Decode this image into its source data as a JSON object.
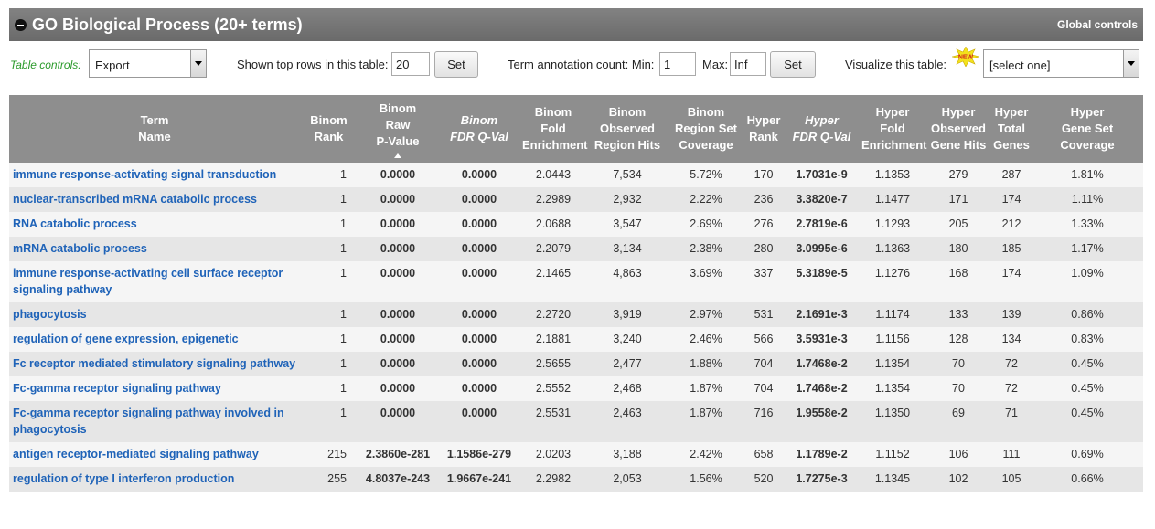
{
  "header": {
    "title": "GO Biological Process (20+ terms)",
    "global_controls": "Global controls"
  },
  "controls": {
    "table_controls_label": "Table controls:",
    "export_value": "Export",
    "shown_rows_label": "Shown top rows in this table:",
    "shown_rows_value": "20",
    "set_label": "Set",
    "annotation_label": "Term annotation count: Min:",
    "min_value": "1",
    "max_label": "Max:",
    "max_value": "Inf",
    "visualize_label": "Visualize this table:",
    "visualize_value": "[select one]",
    "new_badge": "NEW"
  },
  "columns": [
    {
      "l1": "Term",
      "l2": "Name",
      "l3": ""
    },
    {
      "l1": "Binom",
      "l2": "Rank",
      "l3": ""
    },
    {
      "l1": "Binom",
      "l2": "Raw",
      "l3": "P-Value"
    },
    {
      "l1": "Binom",
      "l2": "FDR Q-Val",
      "l3": ""
    },
    {
      "l1": "Binom",
      "l2": "Fold",
      "l3": "Enrichment"
    },
    {
      "l1": "Binom",
      "l2": "Observed",
      "l3": "Region Hits"
    },
    {
      "l1": "Binom",
      "l2": "Region Set",
      "l3": "Coverage"
    },
    {
      "l1": "Hyper",
      "l2": "Rank",
      "l3": ""
    },
    {
      "l1": "Hyper",
      "l2": "FDR Q-Val",
      "l3": ""
    },
    {
      "l1": "Hyper",
      "l2": "Fold",
      "l3": "Enrichment"
    },
    {
      "l1": "Hyper",
      "l2": "Observed",
      "l3": "Gene Hits"
    },
    {
      "l1": "Hyper",
      "l2": "Total",
      "l3": "Genes"
    },
    {
      "l1": "Hyper",
      "l2": "Gene Set",
      "l3": "Coverage"
    }
  ],
  "rows": [
    {
      "term": "immune response-activating signal transduction",
      "binom_rank": "1",
      "binom_p": "0.0000",
      "binom_fdr": "0.0000",
      "binom_fold": "2.0443",
      "binom_hits": "7,534",
      "binom_cov": "5.72%",
      "hyper_rank": "170",
      "hyper_fdr": "1.7031e-9",
      "hyper_fold": "1.1353",
      "hyper_hits": "279",
      "hyper_total": "287",
      "hyper_cov": "1.81%"
    },
    {
      "term": "nuclear-transcribed mRNA catabolic process",
      "binom_rank": "1",
      "binom_p": "0.0000",
      "binom_fdr": "0.0000",
      "binom_fold": "2.2989",
      "binom_hits": "2,932",
      "binom_cov": "2.22%",
      "hyper_rank": "236",
      "hyper_fdr": "3.3820e-7",
      "hyper_fold": "1.1477",
      "hyper_hits": "171",
      "hyper_total": "174",
      "hyper_cov": "1.11%"
    },
    {
      "term": "RNA catabolic process",
      "binom_rank": "1",
      "binom_p": "0.0000",
      "binom_fdr": "0.0000",
      "binom_fold": "2.0688",
      "binom_hits": "3,547",
      "binom_cov": "2.69%",
      "hyper_rank": "276",
      "hyper_fdr": "2.7819e-6",
      "hyper_fold": "1.1293",
      "hyper_hits": "205",
      "hyper_total": "212",
      "hyper_cov": "1.33%"
    },
    {
      "term": "mRNA catabolic process",
      "binom_rank": "1",
      "binom_p": "0.0000",
      "binom_fdr": "0.0000",
      "binom_fold": "2.2079",
      "binom_hits": "3,134",
      "binom_cov": "2.38%",
      "hyper_rank": "280",
      "hyper_fdr": "3.0995e-6",
      "hyper_fold": "1.1363",
      "hyper_hits": "180",
      "hyper_total": "185",
      "hyper_cov": "1.17%"
    },
    {
      "term": "immune response-activating cell surface receptor signaling pathway",
      "binom_rank": "1",
      "binom_p": "0.0000",
      "binom_fdr": "0.0000",
      "binom_fold": "2.1465",
      "binom_hits": "4,863",
      "binom_cov": "3.69%",
      "hyper_rank": "337",
      "hyper_fdr": "5.3189e-5",
      "hyper_fold": "1.1276",
      "hyper_hits": "168",
      "hyper_total": "174",
      "hyper_cov": "1.09%"
    },
    {
      "term": "phagocytosis",
      "binom_rank": "1",
      "binom_p": "0.0000",
      "binom_fdr": "0.0000",
      "binom_fold": "2.2720",
      "binom_hits": "3,919",
      "binom_cov": "2.97%",
      "hyper_rank": "531",
      "hyper_fdr": "2.1691e-3",
      "hyper_fold": "1.1174",
      "hyper_hits": "133",
      "hyper_total": "139",
      "hyper_cov": "0.86%"
    },
    {
      "term": "regulation of gene expression, epigenetic",
      "binom_rank": "1",
      "binom_p": "0.0000",
      "binom_fdr": "0.0000",
      "binom_fold": "2.1881",
      "binom_hits": "3,240",
      "binom_cov": "2.46%",
      "hyper_rank": "566",
      "hyper_fdr": "3.5931e-3",
      "hyper_fold": "1.1156",
      "hyper_hits": "128",
      "hyper_total": "134",
      "hyper_cov": "0.83%"
    },
    {
      "term": "Fc receptor mediated stimulatory signaling pathway",
      "binom_rank": "1",
      "binom_p": "0.0000",
      "binom_fdr": "0.0000",
      "binom_fold": "2.5655",
      "binom_hits": "2,477",
      "binom_cov": "1.88%",
      "hyper_rank": "704",
      "hyper_fdr": "1.7468e-2",
      "hyper_fold": "1.1354",
      "hyper_hits": "70",
      "hyper_total": "72",
      "hyper_cov": "0.45%"
    },
    {
      "term": "Fc-gamma receptor signaling pathway",
      "binom_rank": "1",
      "binom_p": "0.0000",
      "binom_fdr": "0.0000",
      "binom_fold": "2.5552",
      "binom_hits": "2,468",
      "binom_cov": "1.87%",
      "hyper_rank": "704",
      "hyper_fdr": "1.7468e-2",
      "hyper_fold": "1.1354",
      "hyper_hits": "70",
      "hyper_total": "72",
      "hyper_cov": "0.45%"
    },
    {
      "term": "Fc-gamma receptor signaling pathway involved in phagocytosis",
      "binom_rank": "1",
      "binom_p": "0.0000",
      "binom_fdr": "0.0000",
      "binom_fold": "2.5531",
      "binom_hits": "2,463",
      "binom_cov": "1.87%",
      "hyper_rank": "716",
      "hyper_fdr": "1.9558e-2",
      "hyper_fold": "1.1350",
      "hyper_hits": "69",
      "hyper_total": "71",
      "hyper_cov": "0.45%"
    },
    {
      "term": "antigen receptor-mediated signaling pathway",
      "binom_rank": "215",
      "binom_p": "2.3860e-281",
      "binom_fdr": "1.1586e-279",
      "binom_fold": "2.0203",
      "binom_hits": "3,188",
      "binom_cov": "2.42%",
      "hyper_rank": "658",
      "hyper_fdr": "1.1789e-2",
      "hyper_fold": "1.1152",
      "hyper_hits": "106",
      "hyper_total": "111",
      "hyper_cov": "0.69%"
    },
    {
      "term": "regulation of type I interferon production",
      "binom_rank": "255",
      "binom_p": "4.8037e-243",
      "binom_fdr": "1.9667e-241",
      "binom_fold": "2.2982",
      "binom_hits": "2,053",
      "binom_cov": "1.56%",
      "hyper_rank": "520",
      "hyper_fdr": "1.7275e-3",
      "hyper_fold": "1.1345",
      "hyper_hits": "102",
      "hyper_total": "105",
      "hyper_cov": "0.66%"
    }
  ]
}
